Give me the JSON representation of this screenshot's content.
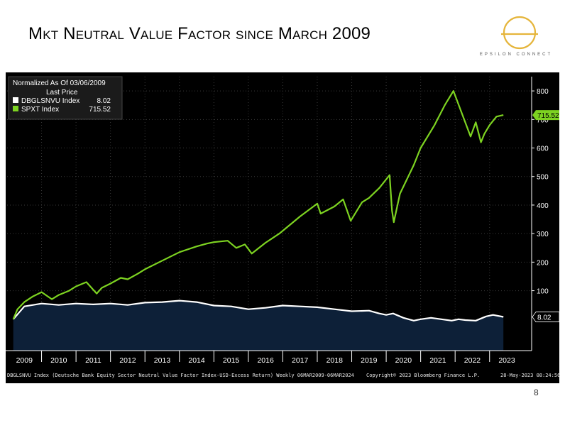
{
  "slide": {
    "title": "Mkt Neutral Value Factor since March 2009",
    "logo_text": "EPSILON CONNECT",
    "page_number": "8"
  },
  "footer": {
    "left": "DBGLSNVU Index (Deutsche Bank Equity Sector Neutral Value Factor Index-USD-Excess Return) Weekly 06MAR2009-06MAR2024",
    "middle": "Copyright© 2023 Bloomberg Finance L.P.",
    "right": "28-May-2023 08:24:56"
  },
  "colors": {
    "background": "#000000",
    "spxt": "#7dd321",
    "dbglsnvu_line": "#ffffff",
    "dbglsnvu_fill": "#0d2038",
    "axis_text": "#ffffff",
    "logo": "#e5b53b"
  },
  "chart_data": {
    "type": "line",
    "legend": {
      "title_line1": "Normalized As Of 03/06/2009",
      "title_line2": "Last Price",
      "placement": "top-left",
      "entries": [
        {
          "name": "DBGLSNVU Index",
          "value": "8.02",
          "color": "#ffffff"
        },
        {
          "name": "SPXT Index",
          "value": "715.52",
          "color": "#7dd321"
        }
      ]
    },
    "x_tick_labels": [
      "2009",
      "2010",
      "2011",
      "2012",
      "2013",
      "2014",
      "2015",
      "2016",
      "2017",
      "2018",
      "2019",
      "2020",
      "2021",
      "2022",
      "2023"
    ],
    "xlim": [
      2009.0,
      2024.2
    ],
    "ylim": [
      -110,
      850
    ],
    "y_ticks": [
      100,
      200,
      300,
      400,
      500,
      600,
      700,
      800
    ],
    "y_tick_labels": [
      "100",
      "200",
      "300",
      "400",
      "500",
      "600",
      "700",
      "800"
    ],
    "grid": true,
    "last_value_labels": [
      {
        "series": "SPXT Index",
        "text": "715.52"
      },
      {
        "series": "DBGLSNVU Index",
        "text": "8.02"
      }
    ],
    "series": [
      {
        "name": "SPXT Index",
        "x": [
          2009.18,
          2009.3,
          2009.5,
          2009.75,
          2010.0,
          2010.3,
          2010.5,
          2010.8,
          2011.0,
          2011.3,
          2011.6,
          2011.75,
          2012.0,
          2012.3,
          2012.5,
          2012.8,
          2013.0,
          2013.5,
          2014.0,
          2014.5,
          2014.8,
          2015.0,
          2015.4,
          2015.65,
          2015.9,
          2016.1,
          2016.5,
          2016.9,
          2017.5,
          2018.0,
          2018.1,
          2018.5,
          2018.75,
          2018.97,
          2019.3,
          2019.5,
          2019.8,
          2020.1,
          2020.17,
          2020.22,
          2020.4,
          2020.6,
          2020.8,
          2021.0,
          2021.4,
          2021.7,
          2021.95,
          2022.2,
          2022.45,
          2022.6,
          2022.75,
          2022.85,
          2023.0,
          2023.2,
          2023.4
        ],
        "values": [
          0,
          35,
          60,
          80,
          95,
          70,
          85,
          100,
          115,
          130,
          90,
          110,
          125,
          145,
          140,
          160,
          175,
          205,
          235,
          255,
          265,
          270,
          275,
          250,
          262,
          230,
          268,
          300,
          360,
          405,
          370,
          395,
          420,
          345,
          410,
          425,
          460,
          505,
          380,
          340,
          440,
          490,
          540,
          600,
          680,
          750,
          800,
          720,
          640,
          690,
          620,
          650,
          680,
          710,
          715.52
        ]
      },
      {
        "name": "DBGLSNVU Index",
        "x": [
          2009.18,
          2009.5,
          2010.0,
          2010.5,
          2011.0,
          2011.5,
          2012.0,
          2012.5,
          2013.0,
          2013.5,
          2014.0,
          2014.5,
          2015.0,
          2015.5,
          2016.0,
          2016.5,
          2017.0,
          2017.5,
          2018.0,
          2018.5,
          2019.0,
          2019.5,
          2019.8,
          2020.0,
          2020.2,
          2020.5,
          2020.8,
          2021.0,
          2021.3,
          2021.6,
          2021.9,
          2022.1,
          2022.3,
          2022.6,
          2022.9,
          2023.1,
          2023.4
        ],
        "values": [
          0,
          45,
          55,
          50,
          55,
          52,
          55,
          50,
          58,
          60,
          65,
          60,
          48,
          45,
          35,
          40,
          48,
          45,
          42,
          35,
          28,
          30,
          20,
          15,
          20,
          5,
          -5,
          0,
          5,
          0,
          -5,
          0,
          -3,
          -5,
          10,
          15,
          8.02
        ]
      }
    ]
  }
}
